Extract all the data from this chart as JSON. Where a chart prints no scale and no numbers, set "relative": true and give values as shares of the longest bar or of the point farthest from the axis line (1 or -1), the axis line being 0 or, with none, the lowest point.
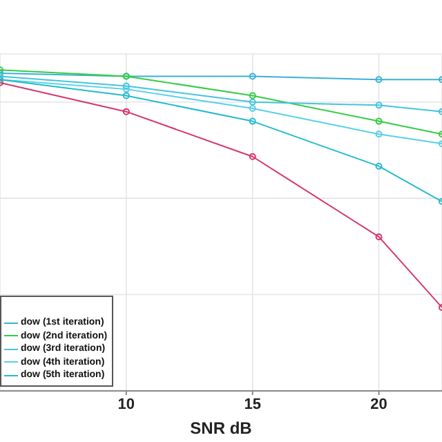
{
  "chart_data": {
    "type": "line",
    "xlabel": "SNR dB",
    "relative": true,
    "x": [
      5,
      10,
      15,
      20,
      22.5
    ],
    "xlim": [
      5,
      22.5
    ],
    "xticks": [
      10,
      15,
      20
    ],
    "grid": true,
    "legend": "bottom left",
    "marker": "circle",
    "line_style": "solid",
    "series": [
      {
        "color": "#d6336c",
        "values": [
          0.96,
          0.87,
          0.73,
          0.48,
          0.26
        ]
      },
      {
        "name": "dow (1st iteration)",
        "color": "#3ab0d8",
        "values": [
          0.99,
          0.98,
          0.98,
          0.97,
          0.97
        ]
      },
      {
        "name": "dow (2nd iteration)",
        "color": "#33cc44",
        "values": [
          1.0,
          0.98,
          0.92,
          0.84,
          0.8
        ]
      },
      {
        "name": "dow (3rd iteration)",
        "color": "#44c4dd",
        "values": [
          0.98,
          0.95,
          0.9,
          0.89,
          0.87
        ]
      },
      {
        "name": "dow (4th iteration)",
        "color": "#55d0e8",
        "values": [
          0.97,
          0.94,
          0.88,
          0.8,
          0.77
        ]
      },
      {
        "name": "dow (5th iteration)",
        "color": "#22bbcc",
        "values": [
          0.97,
          0.92,
          0.84,
          0.7,
          0.59
        ]
      }
    ]
  }
}
